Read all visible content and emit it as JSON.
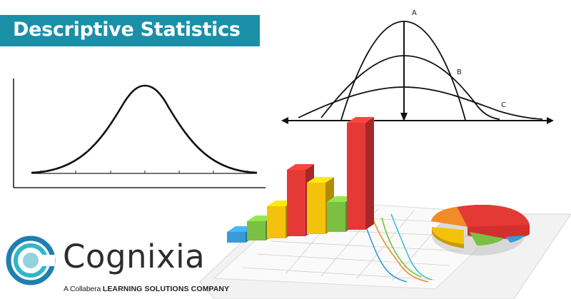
{
  "banner": {
    "title": "Descriptive Statistics",
    "color": "#1a8fa8"
  },
  "distribution_curves": {
    "labels": [
      "A",
      "B",
      "C"
    ]
  },
  "logo": {
    "brand": "Cognixia",
    "tagline_prefix": "A Collabera",
    "tagline_bold": "LEARNING SOLUTIONS COMPANY",
    "ring_colors": [
      "#1e7fb0",
      "#2fb7c7",
      "#8fd3de"
    ]
  },
  "chart_data": {
    "type": "bar",
    "title": "",
    "categories": [],
    "series": [],
    "bar_colors": [
      "#3a9ad9",
      "#7bc043",
      "#f4c20d",
      "#e53935",
      "#f4c20d",
      "#7bc043",
      "#e53935"
    ],
    "relative_heights": [
      0.1,
      0.18,
      0.3,
      0.62,
      0.48,
      0.28,
      1.0
    ],
    "pie_colors": [
      "#e53935",
      "#f4c20d",
      "#7bc043",
      "#f28c28",
      "#3a9ad9"
    ],
    "pie_shares": [
      0.36,
      0.22,
      0.16,
      0.16,
      0.1
    ]
  }
}
